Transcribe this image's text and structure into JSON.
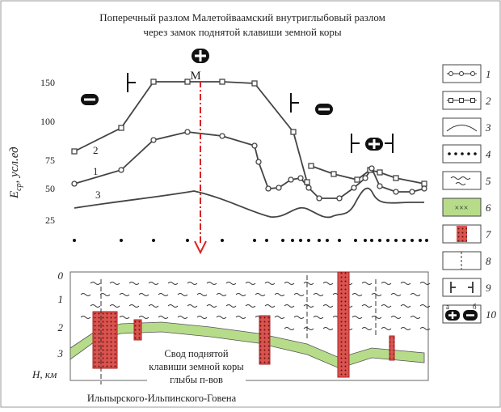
{
  "title": [
    "Поперечный разлом Малетойваамский внутриглыбовый разлом",
    "через замок поднятой клавиши земной коры"
  ],
  "upper_plot": {
    "axis_label": {
      "main": "E",
      "sub": "ср",
      "rest": ", усл.ед"
    },
    "ticks": [
      "150",
      "100",
      "75",
      "50",
      "25"
    ],
    "curve_labels": [
      "2",
      "1",
      "3"
    ],
    "point_label": "M"
  },
  "lower_plot": {
    "depth_ticks": [
      "0",
      "1",
      "2",
      "3"
    ],
    "axis_label": "Н, км",
    "annotation": [
      "Свод поднятой",
      "клавиши земной коры",
      "глыбы п-вов",
      "Ильпырского-Ильпинского-Говена"
    ]
  },
  "legend": {
    "items": [
      "1",
      "2",
      "3",
      "4",
      "5",
      "6",
      "7",
      "8",
      "9",
      "10"
    ],
    "sub_labels": [
      "а",
      "б"
    ]
  }
}
